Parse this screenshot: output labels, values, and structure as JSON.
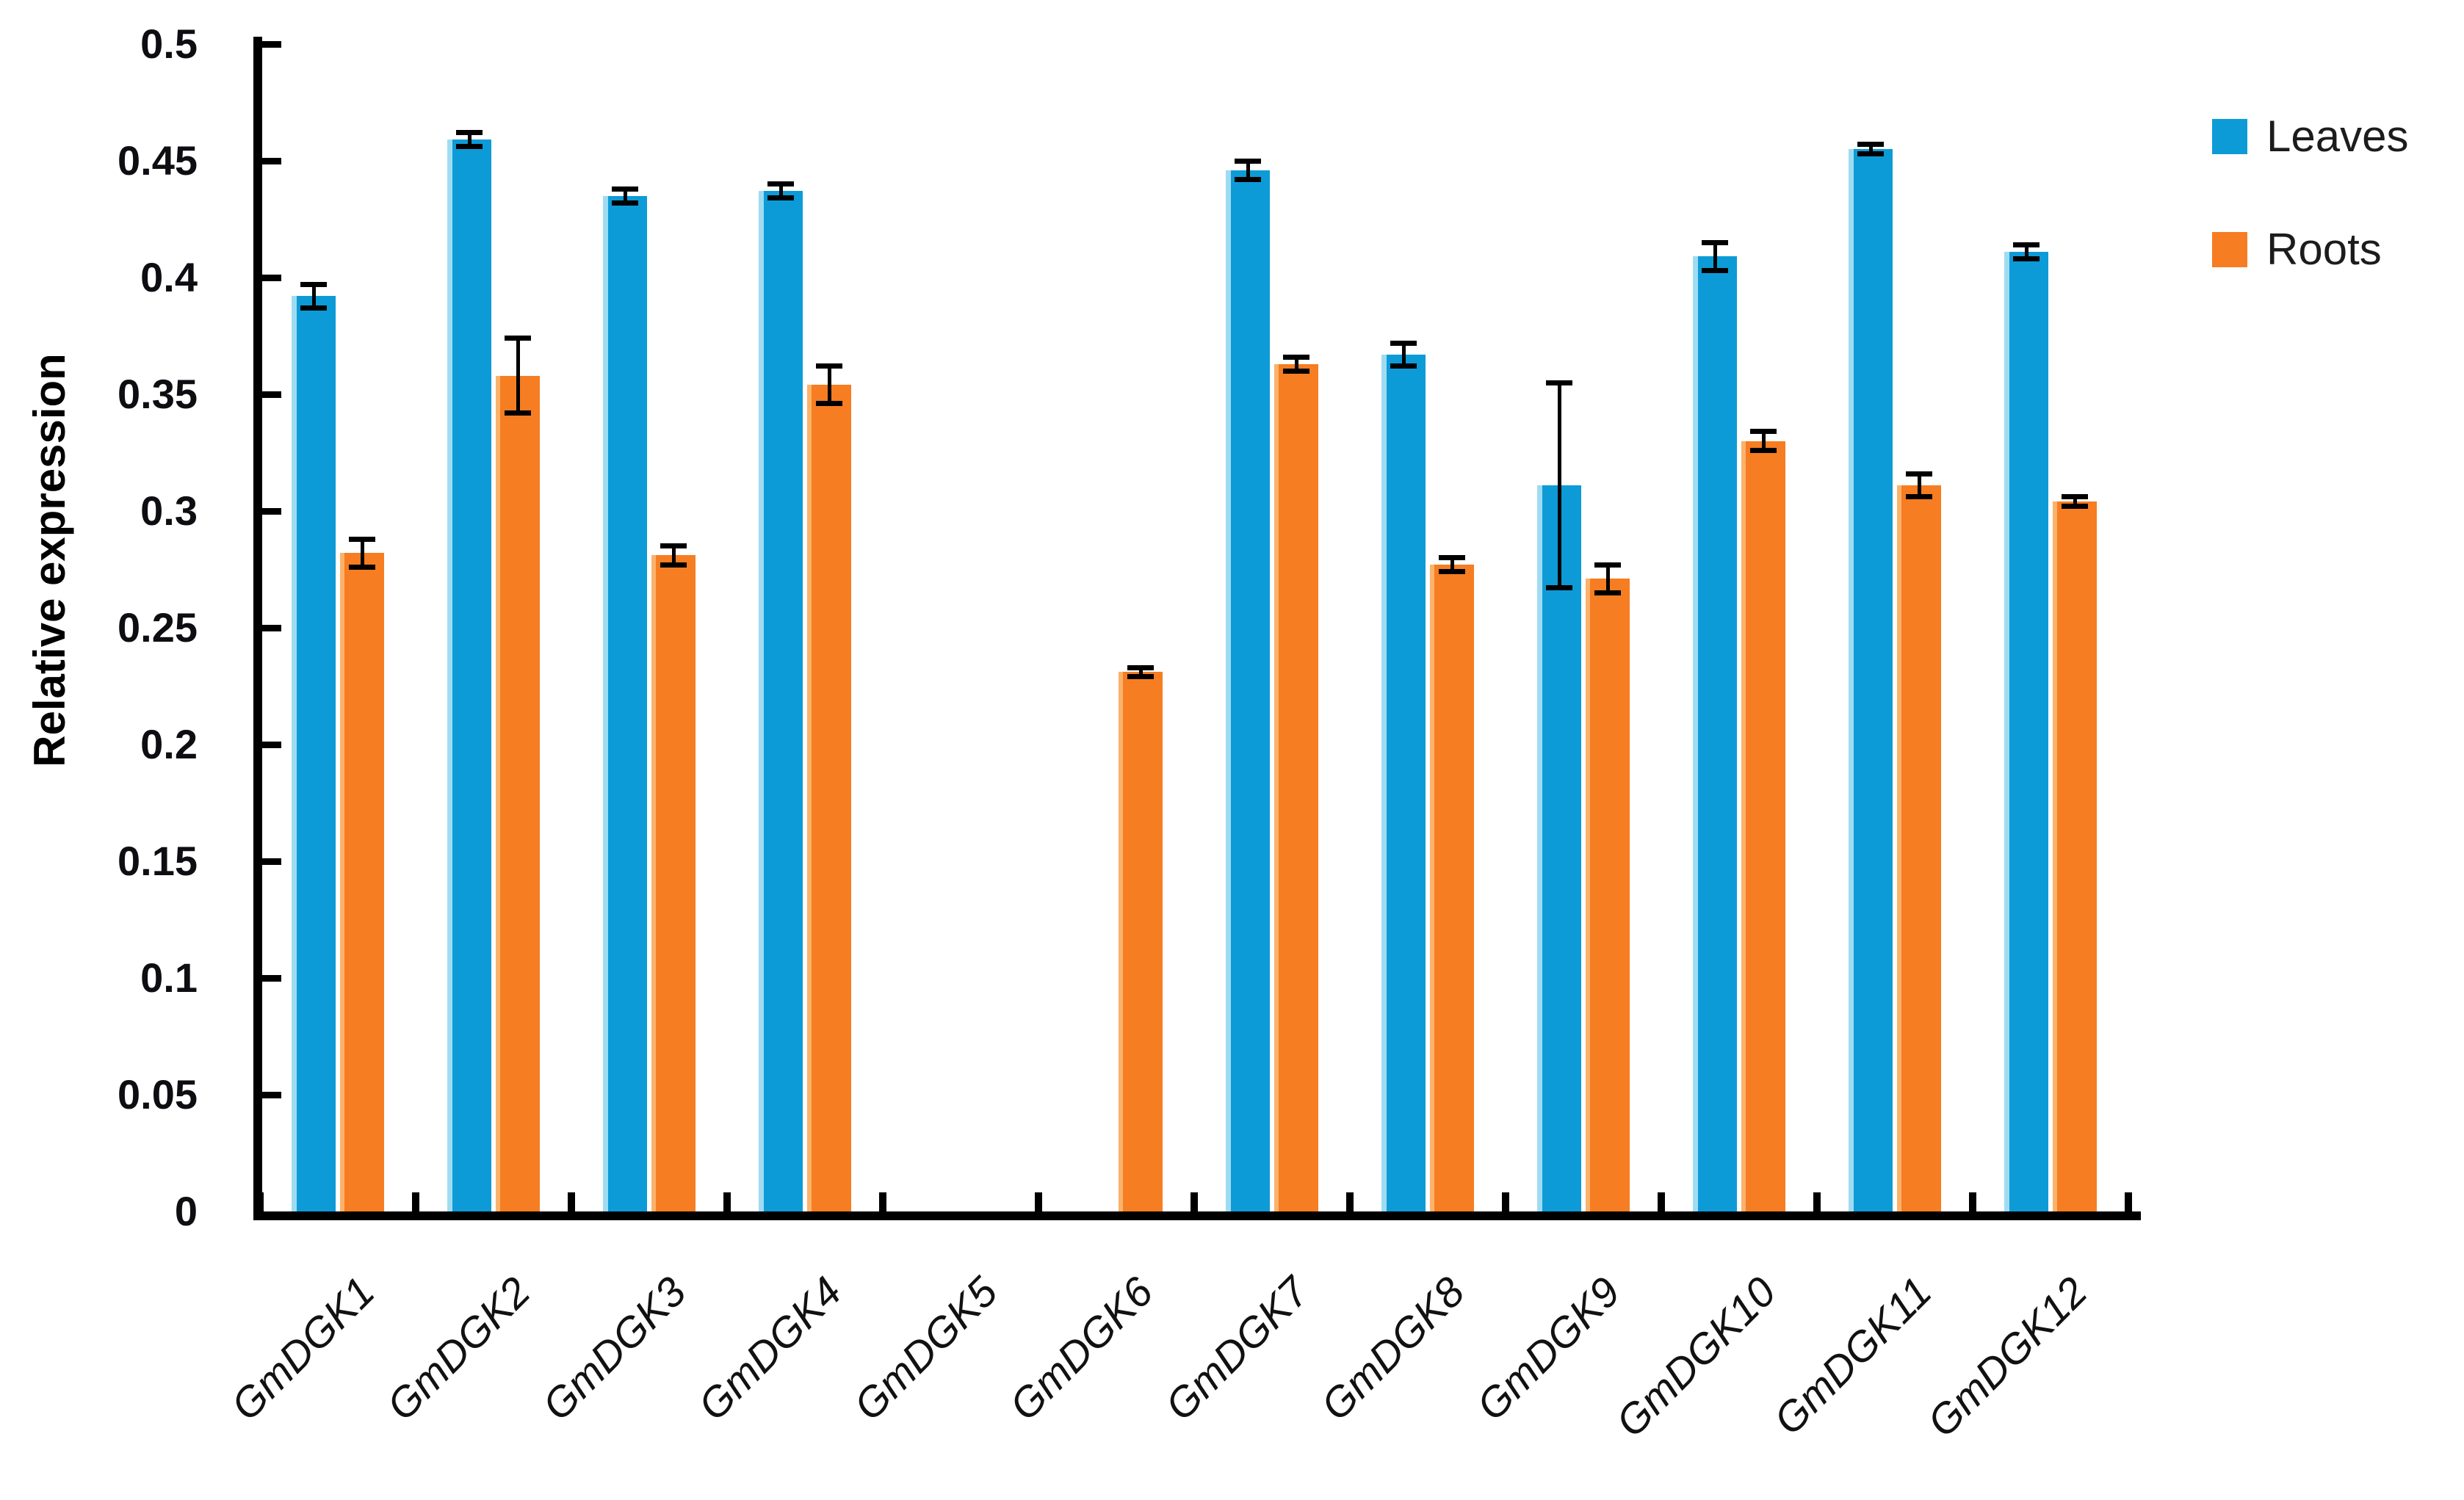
{
  "figure": {
    "background": "#ffffff"
  },
  "legend": {
    "position": "top-right",
    "items": [
      {
        "label": "Leaves",
        "color": "#0d9bd7"
      },
      {
        "label": "Roots",
        "color": "#f67d21"
      }
    ]
  },
  "chart_data": {
    "type": "bar",
    "title": "",
    "xlabel": "",
    "ylabel": "Relative expression",
    "ylim": [
      0,
      0.5
    ],
    "ytick_step": 0.05,
    "ytick_labels": [
      "0",
      "0.05",
      "0.1",
      "0.15",
      "0.2",
      "0.25",
      "0.3",
      "0.35",
      "0.4",
      "0.45",
      "0.5"
    ],
    "grid": false,
    "error_bars": true,
    "legend_position": "top-right",
    "categories": [
      "GmDGK1",
      "GmDGK2",
      "GmDGK3",
      "GmDGK4",
      "GmDGK5",
      "GmDGK6",
      "GmDGK7",
      "GmDGK8",
      "GmDGK9",
      "GmDGK10",
      "GmDGK11",
      "GmDGK12"
    ],
    "series": [
      {
        "name": "Leaves",
        "color": "#0d9bd7",
        "edge_highlight": "#9fdcf2",
        "values": [
          0.392,
          0.459,
          0.435,
          0.437,
          null,
          null,
          0.446,
          0.367,
          0.311,
          0.409,
          0.455,
          0.411
        ],
        "errors": [
          0.005,
          0.003,
          0.003,
          0.003,
          null,
          null,
          0.004,
          0.005,
          0.044,
          0.006,
          0.002,
          0.003
        ]
      },
      {
        "name": "Roots",
        "color": "#f67d21",
        "edge_highlight": "#fbb26b",
        "values": [
          0.282,
          0.358,
          0.281,
          0.354,
          null,
          0.231,
          0.363,
          0.277,
          0.271,
          0.33,
          0.311,
          0.304
        ],
        "errors": [
          0.006,
          0.016,
          0.004,
          0.008,
          null,
          0.002,
          0.003,
          0.003,
          0.006,
          0.004,
          0.005,
          0.002
        ]
      }
    ]
  }
}
